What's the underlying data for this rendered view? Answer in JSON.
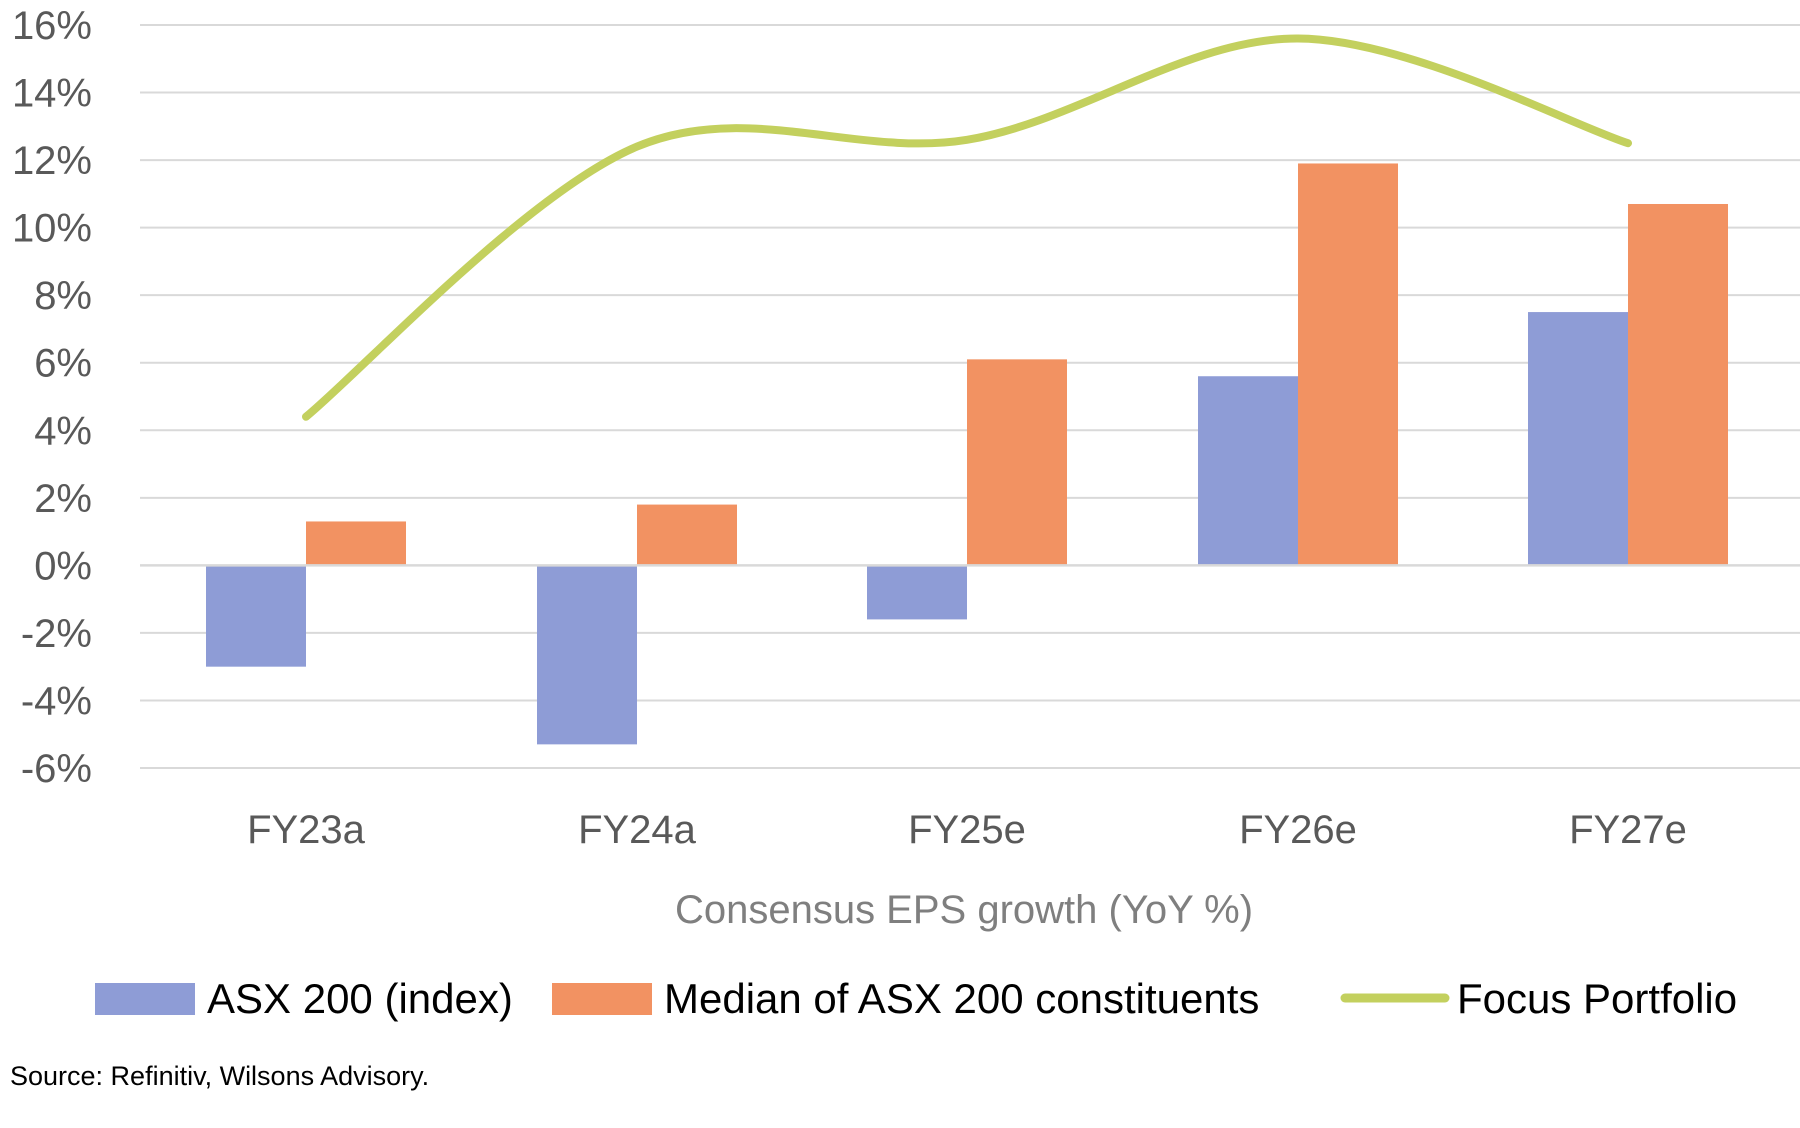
{
  "chart_data": {
    "type": "bar",
    "categories": [
      "FY23a",
      "FY24a",
      "FY25e",
      "FY26e",
      "FY27e"
    ],
    "series": [
      {
        "name": "ASX 200 (index)",
        "kind": "bar",
        "color": "#8e9cd6",
        "values": [
          -3.0,
          -5.3,
          -1.6,
          5.6,
          7.5
        ]
      },
      {
        "name": "Median of ASX 200 constituents",
        "kind": "bar",
        "color": "#f29262",
        "values": [
          1.3,
          1.8,
          6.1,
          11.9,
          10.7
        ]
      },
      {
        "name": "Focus Portfolio",
        "kind": "line",
        "color": "#c3d05e",
        "values": [
          4.4,
          12.4,
          12.6,
          15.6,
          12.5
        ]
      }
    ],
    "yticks": [
      "16%",
      "14%",
      "12%",
      "10%",
      "8%",
      "6%",
      "4%",
      "2%",
      "0%",
      "-2%",
      "-4%",
      "-6%"
    ],
    "ylim": [
      -6,
      16
    ],
    "xlabel": "Consensus EPS growth (YoY %)",
    "grid": true,
    "legend": "bottom"
  },
  "source": "Source: Refinitiv, Wilsons Advisory."
}
